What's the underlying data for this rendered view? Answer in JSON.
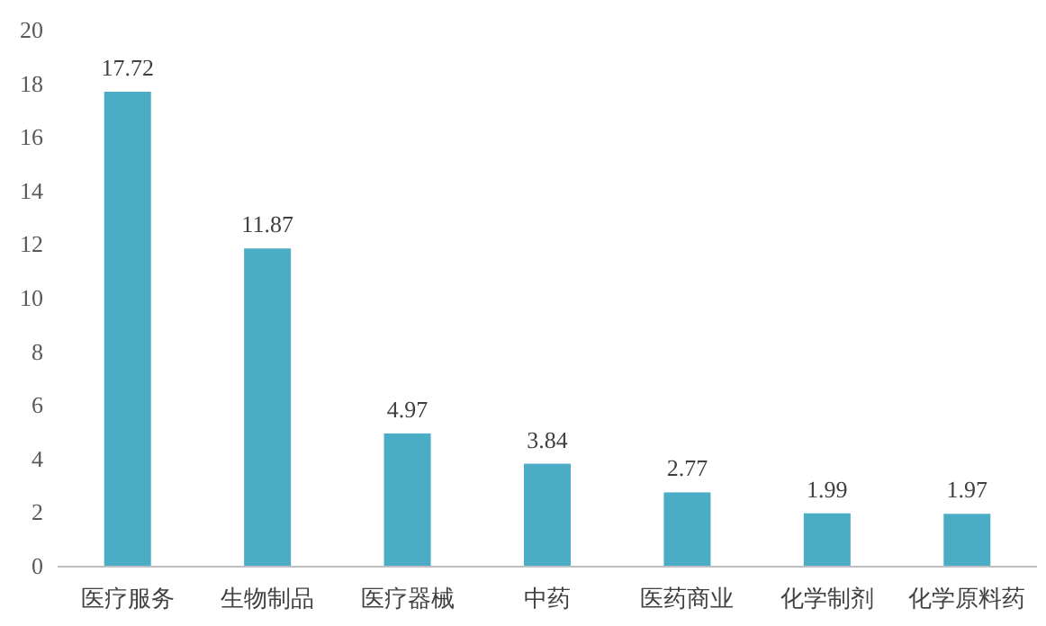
{
  "chart_data": {
    "type": "bar",
    "categories": [
      "医疗服务",
      "生物制品",
      "医疗器械",
      "中药",
      "医药商业",
      "化学制剂",
      "化学原料药"
    ],
    "values": [
      17.72,
      11.87,
      4.97,
      3.84,
      2.77,
      1.99,
      1.97
    ],
    "color": "#4bacc6",
    "ylim": [
      0,
      20
    ],
    "yticks": [
      0,
      2,
      4,
      6,
      8,
      10,
      12,
      14,
      16,
      18,
      20
    ],
    "data_labels": true
  }
}
